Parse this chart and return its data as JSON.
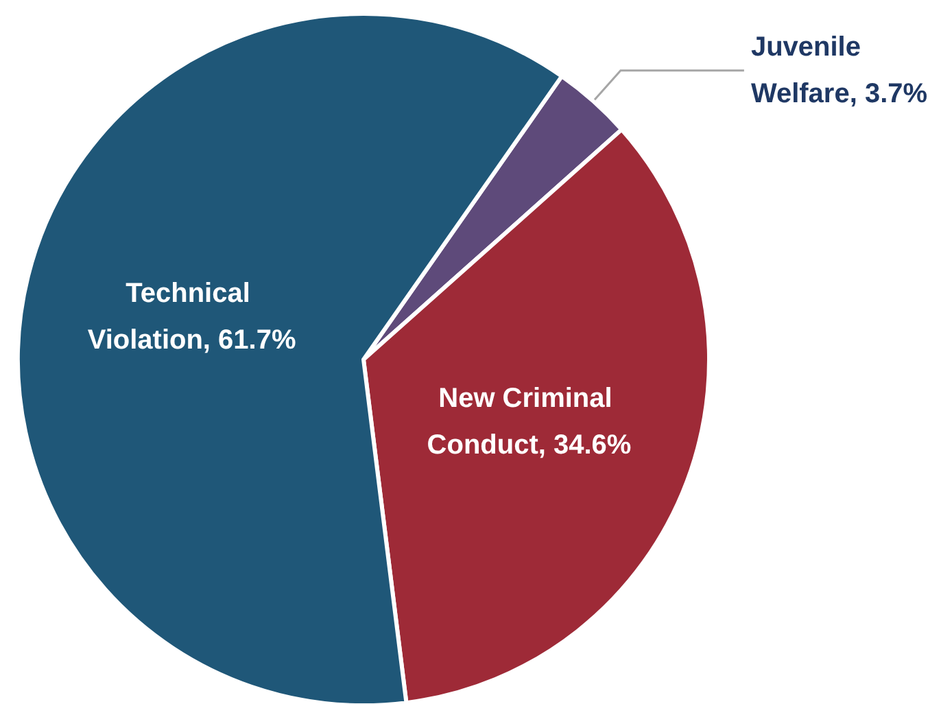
{
  "chart_data": {
    "type": "pie",
    "categories": [
      "Juvenile Welfare",
      "New Criminal Conduct",
      "Technical Violation"
    ],
    "values": [
      3.7,
      34.6,
      61.7
    ],
    "value_labels": [
      "3.7%",
      "34.6%",
      "61.7%"
    ],
    "colors": [
      "#5e4a7a",
      "#9e2a37",
      "#1f5778"
    ],
    "legend": false
  }
}
